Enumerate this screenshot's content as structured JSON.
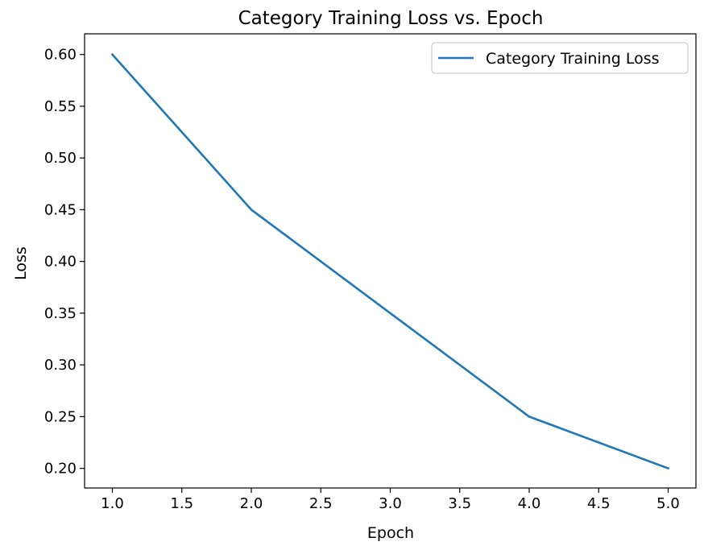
{
  "chart_data": {
    "type": "line",
    "title": "Category Training Loss vs. Epoch",
    "xlabel": "Epoch",
    "ylabel": "Loss",
    "xlim": [
      0.8,
      5.2
    ],
    "ylim": [
      0.181,
      0.62
    ],
    "xticks": [
      1.0,
      1.5,
      2.0,
      2.5,
      3.0,
      3.5,
      4.0,
      4.5,
      5.0
    ],
    "xtick_labels": [
      "1.0",
      "1.5",
      "2.0",
      "2.5",
      "3.0",
      "3.5",
      "4.0",
      "4.5",
      "5.0"
    ],
    "yticks": [
      0.2,
      0.25,
      0.3,
      0.35,
      0.4,
      0.45,
      0.5,
      0.55,
      0.6
    ],
    "ytick_labels": [
      "0.20",
      "0.25",
      "0.30",
      "0.35",
      "0.40",
      "0.45",
      "0.50",
      "0.55",
      "0.60"
    ],
    "grid": false,
    "legend_position": "top-right",
    "series": [
      {
        "name": "Category Training Loss",
        "color": "#1f77b4",
        "x": [
          1,
          2,
          3,
          4,
          5
        ],
        "y": [
          0.6,
          0.45,
          0.35,
          0.25,
          0.2
        ]
      }
    ]
  }
}
